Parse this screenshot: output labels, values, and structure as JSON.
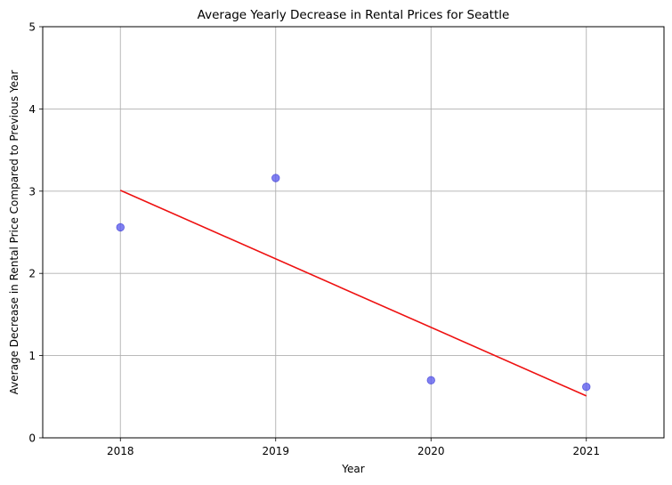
{
  "chart_data": {
    "type": "scatter",
    "title": "Average Yearly Decrease in Rental Prices for Seattle",
    "xlabel": "Year",
    "ylabel": "Average Decrease in Rental Price Compared to Previous Year",
    "xlim": [
      2017.5,
      2021.5
    ],
    "ylim": [
      0,
      5
    ],
    "xticks": [
      "2018",
      "2019",
      "2020",
      "2021"
    ],
    "yticks": [
      "0",
      "1",
      "2",
      "3",
      "4",
      "5"
    ],
    "grid": true,
    "series": [
      {
        "name": "observed",
        "kind": "scatter",
        "color": "#5555ee",
        "x": [
          2018,
          2019,
          2020,
          2021
        ],
        "y": [
          2.56,
          3.16,
          0.7,
          0.62
        ]
      },
      {
        "name": "trend",
        "kind": "line",
        "color": "#ee1111",
        "x": [
          2018,
          2021
        ],
        "y": [
          3.01,
          0.51
        ]
      }
    ]
  }
}
